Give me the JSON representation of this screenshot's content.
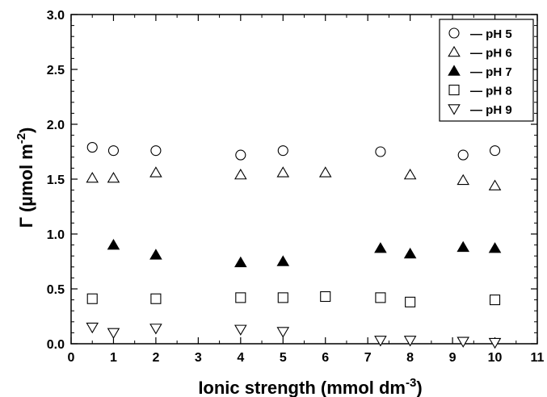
{
  "chart_data": {
    "type": "scatter",
    "title": "",
    "xlabel": "Ionic strength (mmol dm",
    "xlabel_sup": "-3",
    "xlabel_close": ")",
    "ylabel": "Γ (µmol m",
    "ylabel_sup": "-2",
    "ylabel_close": ")",
    "xlim": [
      0,
      11
    ],
    "ylim": [
      0,
      3.0
    ],
    "xticks": [
      "0",
      "1",
      "2",
      "3",
      "4",
      "5",
      "6",
      "7",
      "8",
      "9",
      "10",
      "11"
    ],
    "yticks": [
      "0.0",
      "0.5",
      "1.0",
      "1.5",
      "2.0",
      "2.5",
      "3.0"
    ],
    "grid": false,
    "legend_position": "top-right",
    "series": [
      {
        "name": "pH 5",
        "legend_label": "— pH 5",
        "marker": "circle-open",
        "points": [
          [
            0.5,
            1.79
          ],
          [
            1,
            1.76
          ],
          [
            2,
            1.76
          ],
          [
            4,
            1.72
          ],
          [
            5,
            1.76
          ],
          [
            7.3,
            1.75
          ],
          [
            9.25,
            1.72
          ],
          [
            10,
            1.76
          ]
        ]
      },
      {
        "name": "pH 6",
        "legend_label": "— pH 6",
        "marker": "triangle-up-open",
        "points": [
          [
            0.5,
            1.51
          ],
          [
            1,
            1.51
          ],
          [
            2,
            1.56
          ],
          [
            4,
            1.54
          ],
          [
            5,
            1.56
          ],
          [
            6,
            1.56
          ],
          [
            8,
            1.54
          ],
          [
            9.25,
            1.49
          ],
          [
            10,
            1.44
          ]
        ]
      },
      {
        "name": "pH 7",
        "legend_label": "— pH 7",
        "marker": "triangle-up-filled",
        "points": [
          [
            1,
            0.9
          ],
          [
            2,
            0.81
          ],
          [
            4,
            0.74
          ],
          [
            5,
            0.75
          ],
          [
            7.3,
            0.87
          ],
          [
            8,
            0.82
          ],
          [
            9.25,
            0.88
          ],
          [
            10,
            0.87
          ]
        ]
      },
      {
        "name": "pH 8",
        "legend_label": "— pH 8",
        "marker": "square-open",
        "points": [
          [
            0.5,
            0.41
          ],
          [
            2,
            0.41
          ],
          [
            4,
            0.42
          ],
          [
            5,
            0.42
          ],
          [
            6,
            0.43
          ],
          [
            7.3,
            0.42
          ],
          [
            8,
            0.38
          ],
          [
            10,
            0.4
          ]
        ]
      },
      {
        "name": "pH 9",
        "legend_label": "— pH 9",
        "marker": "triangle-down-open",
        "points": [
          [
            0.5,
            0.15
          ],
          [
            1,
            0.1
          ],
          [
            2,
            0.14
          ],
          [
            4,
            0.13
          ],
          [
            5,
            0.11
          ],
          [
            7.3,
            0.03
          ],
          [
            8,
            0.03
          ],
          [
            9.25,
            0.02
          ],
          [
            10,
            0.01
          ]
        ]
      }
    ]
  }
}
